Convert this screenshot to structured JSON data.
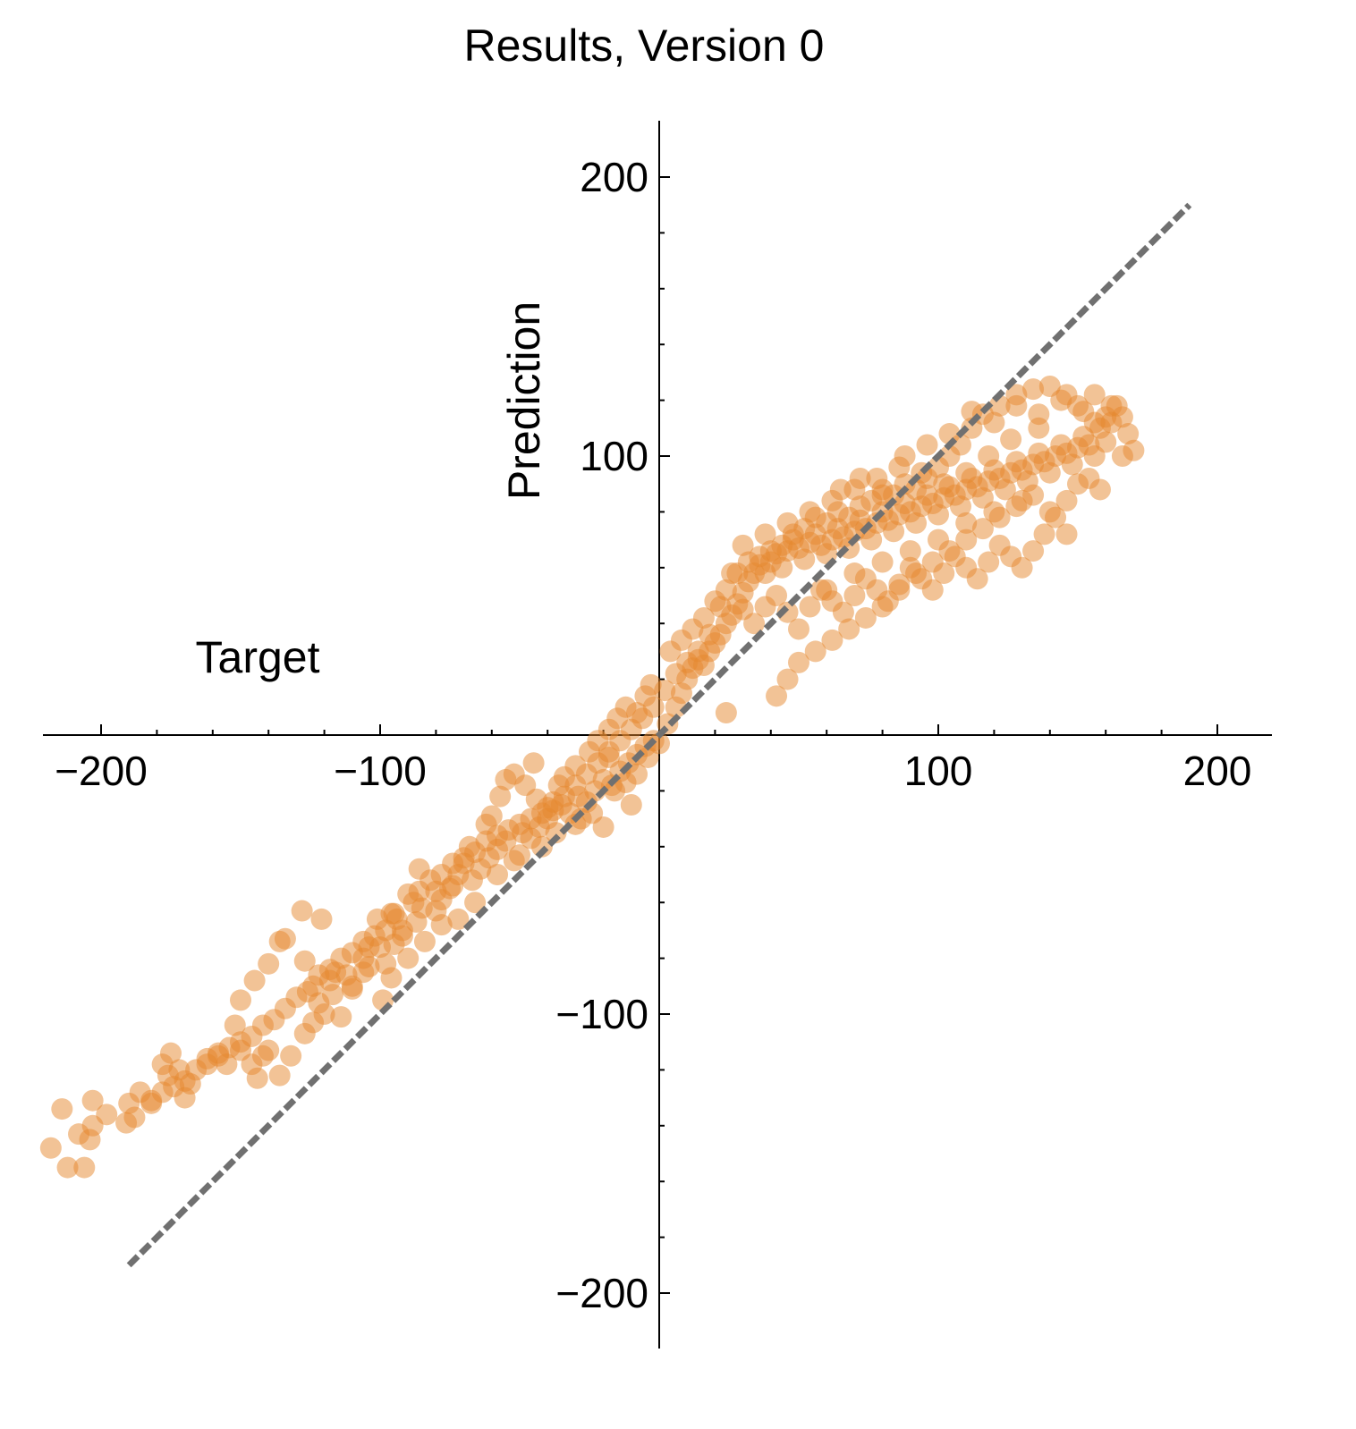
{
  "chart_data": {
    "type": "scatter",
    "title": "Results, Version 0",
    "xlabel": "Target",
    "ylabel": "Prediction",
    "xlim": [
      -220,
      220
    ],
    "ylim": [
      -220,
      220
    ],
    "x_ticks": [
      -200,
      -100,
      100,
      200
    ],
    "y_ticks": [
      -200,
      -100,
      100,
      200
    ],
    "x_tick_labels": [
      "−200",
      "−100",
      "100",
      "200"
    ],
    "y_tick_labels": [
      "−200",
      "−100",
      "100",
      "200"
    ],
    "grid": false,
    "reference_line": {
      "style": "dashed",
      "color": "#707070",
      "from": [
        -190,
        -190
      ],
      "to": [
        190,
        190
      ]
    },
    "marker": {
      "shape": "circle",
      "color": "#E6882E",
      "opacity": 0.5
    },
    "points": [
      [
        -218,
        -148
      ],
      [
        -212,
        -155
      ],
      [
        -206,
        -155
      ],
      [
        -204,
        -145
      ],
      [
        -208,
        -143
      ],
      [
        -203,
        -140
      ],
      [
        -198,
        -136
      ],
      [
        -190,
        -132
      ],
      [
        -214,
        -134
      ],
      [
        -203,
        -131
      ],
      [
        -191,
        -139
      ],
      [
        -188,
        -137
      ],
      [
        -186,
        -128
      ],
      [
        -182,
        -131
      ],
      [
        -178,
        -118
      ],
      [
        -175,
        -114
      ],
      [
        -176,
        -122
      ],
      [
        -172,
        -120
      ],
      [
        -170,
        -130
      ],
      [
        -168,
        -125
      ],
      [
        -162,
        -116
      ],
      [
        -158,
        -115
      ],
      [
        -155,
        -118
      ],
      [
        -150,
        -113
      ],
      [
        -146,
        -118
      ],
      [
        -142,
        -115
      ],
      [
        -140,
        -113
      ],
      [
        -144,
        -123
      ],
      [
        -136,
        -122
      ],
      [
        -132,
        -115
      ],
      [
        -127,
        -107
      ],
      [
        -124,
        -103
      ],
      [
        -122,
        -96
      ],
      [
        -120,
        -100
      ],
      [
        -117,
        -93
      ],
      [
        -114,
        -101
      ],
      [
        -110,
        -91
      ],
      [
        -106,
        -85
      ],
      [
        -104,
        -83
      ],
      [
        -100,
        -76
      ],
      [
        -98,
        -82
      ],
      [
        -95,
        -75
      ],
      [
        -92,
        -70
      ],
      [
        -96,
        -64
      ],
      [
        -101,
        -66
      ],
      [
        -106,
        -80
      ],
      [
        -112,
        -86
      ],
      [
        -118,
        -88
      ],
      [
        -124,
        -90
      ],
      [
        -127,
        -81
      ],
      [
        -134,
        -73
      ],
      [
        -140,
        -82
      ],
      [
        -145,
        -88
      ],
      [
        -150,
        -95
      ],
      [
        -152,
        -104
      ],
      [
        -136,
        -74
      ],
      [
        -128,
        -63
      ],
      [
        -121,
        -66
      ],
      [
        -116,
        -85
      ],
      [
        -110,
        -90
      ],
      [
        -104,
        -76
      ],
      [
        -99,
        -95
      ],
      [
        -96,
        -87
      ],
      [
        -92,
        -72
      ],
      [
        -87,
        -67
      ],
      [
        -85,
        -62
      ],
      [
        -80,
        -56
      ],
      [
        -78,
        -59
      ],
      [
        -75,
        -55
      ],
      [
        -72,
        -50
      ],
      [
        -70,
        -46
      ],
      [
        -67,
        -52
      ],
      [
        -64,
        -48
      ],
      [
        -61,
        -44
      ],
      [
        -58,
        -41
      ],
      [
        -55,
        -38
      ],
      [
        -52,
        -45
      ],
      [
        -49,
        -35
      ],
      [
        -46,
        -37
      ],
      [
        -43,
        -33
      ],
      [
        -40,
        -30
      ],
      [
        -38,
        -27
      ],
      [
        -35,
        -25
      ],
      [
        -32,
        -28
      ],
      [
        -29,
        -22
      ],
      [
        -26,
        -24
      ],
      [
        -23,
        -20
      ],
      [
        -20,
        -16
      ],
      [
        -17,
        -18
      ],
      [
        -14,
        -13
      ],
      [
        -11,
        -10
      ],
      [
        -8,
        -7
      ],
      [
        -5,
        -4
      ],
      [
        -2,
        -2
      ],
      [
        -60,
        -29
      ],
      [
        -57,
        -22
      ],
      [
        -52,
        -14
      ],
      [
        -48,
        -18
      ],
      [
        -44,
        -23
      ],
      [
        -40,
        -26
      ],
      [
        -34,
        -15
      ],
      [
        -30,
        -11
      ],
      [
        -25,
        -6
      ],
      [
        -22,
        -2
      ],
      [
        -18,
        2
      ],
      [
        -15,
        6
      ],
      [
        -12,
        10
      ],
      [
        -8,
        8
      ],
      [
        -5,
        14
      ],
      [
        -3,
        18
      ],
      [
        -10,
        -25
      ],
      [
        -18,
        -8
      ],
      [
        -28,
        -30
      ],
      [
        -36,
        -18
      ],
      [
        -45,
        -10
      ],
      [
        -55,
        -16
      ],
      [
        -62,
        -32
      ],
      [
        -68,
        -40
      ],
      [
        -74,
        -54
      ],
      [
        -80,
        -63
      ],
      [
        -86,
        -48
      ],
      [
        -90,
        -57
      ],
      [
        -66,
        -60
      ],
      [
        -72,
        -66
      ],
      [
        -78,
        -68
      ],
      [
        -84,
        -74
      ],
      [
        -90,
        -80
      ],
      [
        -95,
        -64
      ],
      [
        -58,
        -50
      ],
      [
        -50,
        -43
      ],
      [
        -42,
        -40
      ],
      [
        -37,
        -35
      ],
      [
        -30,
        -32
      ],
      [
        -24,
        -28
      ],
      [
        -20,
        -33
      ],
      [
        -16,
        -20
      ],
      [
        -12,
        -17
      ],
      [
        -8,
        -14
      ],
      [
        -4,
        -8
      ],
      [
        0,
        -3
      ],
      [
        3,
        4
      ],
      [
        6,
        10
      ],
      [
        8,
        15
      ],
      [
        10,
        20
      ],
      [
        12,
        24
      ],
      [
        14,
        27
      ],
      [
        16,
        25
      ],
      [
        18,
        30
      ],
      [
        20,
        33
      ],
      [
        22,
        36
      ],
      [
        24,
        40
      ],
      [
        26,
        43
      ],
      [
        28,
        47
      ],
      [
        30,
        51
      ],
      [
        32,
        55
      ],
      [
        34,
        58
      ],
      [
        36,
        61
      ],
      [
        38,
        58
      ],
      [
        40,
        62
      ],
      [
        42,
        65
      ],
      [
        44,
        60
      ],
      [
        46,
        66
      ],
      [
        48,
        70
      ],
      [
        50,
        67
      ],
      [
        52,
        63
      ],
      [
        54,
        69
      ],
      [
        56,
        72
      ],
      [
        58,
        68
      ],
      [
        60,
        65
      ],
      [
        62,
        70
      ],
      [
        64,
        74
      ],
      [
        66,
        71
      ],
      [
        68,
        67
      ],
      [
        70,
        73
      ],
      [
        72,
        77
      ],
      [
        74,
        74
      ],
      [
        76,
        70
      ],
      [
        78,
        76
      ],
      [
        80,
        80
      ],
      [
        82,
        77
      ],
      [
        84,
        73
      ],
      [
        86,
        79
      ],
      [
        88,
        83
      ],
      [
        90,
        80
      ],
      [
        92,
        76
      ],
      [
        94,
        82
      ],
      [
        96,
        86
      ],
      [
        98,
        83
      ],
      [
        100,
        79
      ],
      [
        102,
        85
      ],
      [
        104,
        89
      ],
      [
        106,
        86
      ],
      [
        108,
        82
      ],
      [
        110,
        88
      ],
      [
        112,
        92
      ],
      [
        114,
        89
      ],
      [
        116,
        85
      ],
      [
        118,
        91
      ],
      [
        120,
        95
      ],
      [
        122,
        92
      ],
      [
        124,
        88
      ],
      [
        126,
        94
      ],
      [
        128,
        98
      ],
      [
        130,
        95
      ],
      [
        132,
        91
      ],
      [
        134,
        97
      ],
      [
        136,
        101
      ],
      [
        138,
        98
      ],
      [
        140,
        94
      ],
      [
        142,
        100
      ],
      [
        144,
        104
      ],
      [
        146,
        101
      ],
      [
        148,
        97
      ],
      [
        150,
        103
      ],
      [
        152,
        107
      ],
      [
        154,
        104
      ],
      [
        156,
        100
      ],
      [
        158,
        110
      ],
      [
        160,
        114
      ],
      [
        162,
        112
      ],
      [
        164,
        118
      ],
      [
        166,
        114
      ],
      [
        168,
        108
      ],
      [
        170,
        102
      ],
      [
        166,
        100
      ],
      [
        160,
        105
      ],
      [
        156,
        112
      ],
      [
        150,
        118
      ],
      [
        146,
        122
      ],
      [
        140,
        125
      ],
      [
        134,
        124
      ],
      [
        128,
        122
      ],
      [
        122,
        118
      ],
      [
        116,
        115
      ],
      [
        112,
        110
      ],
      [
        108,
        104
      ],
      [
        104,
        100
      ],
      [
        100,
        96
      ],
      [
        96,
        92
      ],
      [
        92,
        88
      ],
      [
        88,
        90
      ],
      [
        84,
        86
      ],
      [
        80,
        88
      ],
      [
        76,
        84
      ],
      [
        72,
        82
      ],
      [
        68,
        78
      ],
      [
        64,
        80
      ],
      [
        60,
        76
      ],
      [
        56,
        78
      ],
      [
        52,
        74
      ],
      [
        48,
        72
      ],
      [
        44,
        68
      ],
      [
        40,
        66
      ],
      [
        36,
        64
      ],
      [
        32,
        62
      ],
      [
        28,
        58
      ],
      [
        24,
        52
      ],
      [
        20,
        48
      ],
      [
        16,
        42
      ],
      [
        12,
        38
      ],
      [
        8,
        34
      ],
      [
        4,
        30
      ],
      [
        30,
        45
      ],
      [
        34,
        40
      ],
      [
        38,
        46
      ],
      [
        42,
        50
      ],
      [
        46,
        44
      ],
      [
        50,
        38
      ],
      [
        54,
        46
      ],
      [
        58,
        52
      ],
      [
        62,
        48
      ],
      [
        66,
        44
      ],
      [
        70,
        50
      ],
      [
        74,
        56
      ],
      [
        78,
        52
      ],
      [
        82,
        48
      ],
      [
        86,
        54
      ],
      [
        90,
        60
      ],
      [
        94,
        56
      ],
      [
        98,
        52
      ],
      [
        102,
        58
      ],
      [
        106,
        64
      ],
      [
        110,
        60
      ],
      [
        114,
        56
      ],
      [
        118,
        62
      ],
      [
        122,
        68
      ],
      [
        126,
        64
      ],
      [
        130,
        60
      ],
      [
        134,
        66
      ],
      [
        138,
        72
      ],
      [
        142,
        78
      ],
      [
        146,
        84
      ],
      [
        150,
        90
      ],
      [
        154,
        92
      ],
      [
        158,
        88
      ],
      [
        146,
        72
      ],
      [
        140,
        80
      ],
      [
        134,
        86
      ],
      [
        128,
        82
      ],
      [
        122,
        78
      ],
      [
        116,
        74
      ],
      [
        110,
        70
      ],
      [
        104,
        66
      ],
      [
        98,
        62
      ],
      [
        92,
        58
      ],
      [
        86,
        52
      ],
      [
        80,
        46
      ],
      [
        74,
        42
      ],
      [
        68,
        38
      ],
      [
        62,
        34
      ],
      [
        56,
        30
      ],
      [
        50,
        26
      ],
      [
        46,
        20
      ],
      [
        42,
        14
      ],
      [
        24,
        8
      ],
      [
        60,
        52
      ],
      [
        70,
        58
      ],
      [
        80,
        62
      ],
      [
        90,
        66
      ],
      [
        100,
        70
      ],
      [
        110,
        76
      ],
      [
        120,
        80
      ],
      [
        130,
        84
      ],
      [
        65,
        88
      ],
      [
        72,
        92
      ],
      [
        80,
        86
      ],
      [
        88,
        100
      ],
      [
        96,
        104
      ],
      [
        104,
        108
      ],
      [
        112,
        116
      ],
      [
        120,
        112
      ],
      [
        128,
        118
      ],
      [
        136,
        115
      ],
      [
        144,
        120
      ],
      [
        152,
        116
      ],
      [
        156,
        122
      ],
      [
        162,
        118
      ],
      [
        136,
        110
      ],
      [
        126,
        106
      ],
      [
        118,
        100
      ],
      [
        110,
        94
      ],
      [
        102,
        90
      ],
      [
        94,
        94
      ],
      [
        86,
        96
      ],
      [
        78,
        92
      ],
      [
        70,
        88
      ],
      [
        62,
        84
      ],
      [
        54,
        80
      ],
      [
        46,
        76
      ],
      [
        38,
        72
      ],
      [
        30,
        68
      ],
      [
        26,
        58
      ],
      [
        22,
        46
      ],
      [
        18,
        36
      ],
      [
        14,
        30
      ],
      [
        10,
        26
      ],
      [
        6,
        22
      ],
      [
        2,
        16
      ],
      [
        -2,
        10
      ],
      [
        -6,
        6
      ],
      [
        -10,
        2
      ],
      [
        -14,
        -2
      ],
      [
        -18,
        -6
      ],
      [
        -22,
        -10
      ],
      [
        -26,
        -14
      ],
      [
        -30,
        -18
      ],
      [
        -34,
        -22
      ],
      [
        -38,
        -24
      ],
      [
        -42,
        -28
      ],
      [
        -46,
        -30
      ],
      [
        -50,
        -32
      ],
      [
        -54,
        -34
      ],
      [
        -58,
        -36
      ],
      [
        -62,
        -38
      ],
      [
        -66,
        -42
      ],
      [
        -70,
        -44
      ],
      [
        -74,
        -46
      ],
      [
        -78,
        -50
      ],
      [
        -82,
        -52
      ],
      [
        -86,
        -56
      ],
      [
        -88,
        -60
      ],
      [
        -94,
        -66
      ],
      [
        -98,
        -70
      ],
      [
        -102,
        -72
      ],
      [
        -106,
        -74
      ],
      [
        -110,
        -78
      ],
      [
        -114,
        -80
      ],
      [
        -118,
        -84
      ],
      [
        -122,
        -86
      ],
      [
        -126,
        -92
      ],
      [
        -130,
        -94
      ],
      [
        -134,
        -98
      ],
      [
        -138,
        -102
      ],
      [
        -142,
        -104
      ],
      [
        -146,
        -108
      ],
      [
        -150,
        -110
      ],
      [
        -154,
        -112
      ],
      [
        -158,
        -114
      ],
      [
        -162,
        -118
      ],
      [
        -166,
        -120
      ],
      [
        -170,
        -124
      ],
      [
        -174,
        -126
      ],
      [
        -178,
        -128
      ],
      [
        -182,
        -132
      ]
    ]
  }
}
